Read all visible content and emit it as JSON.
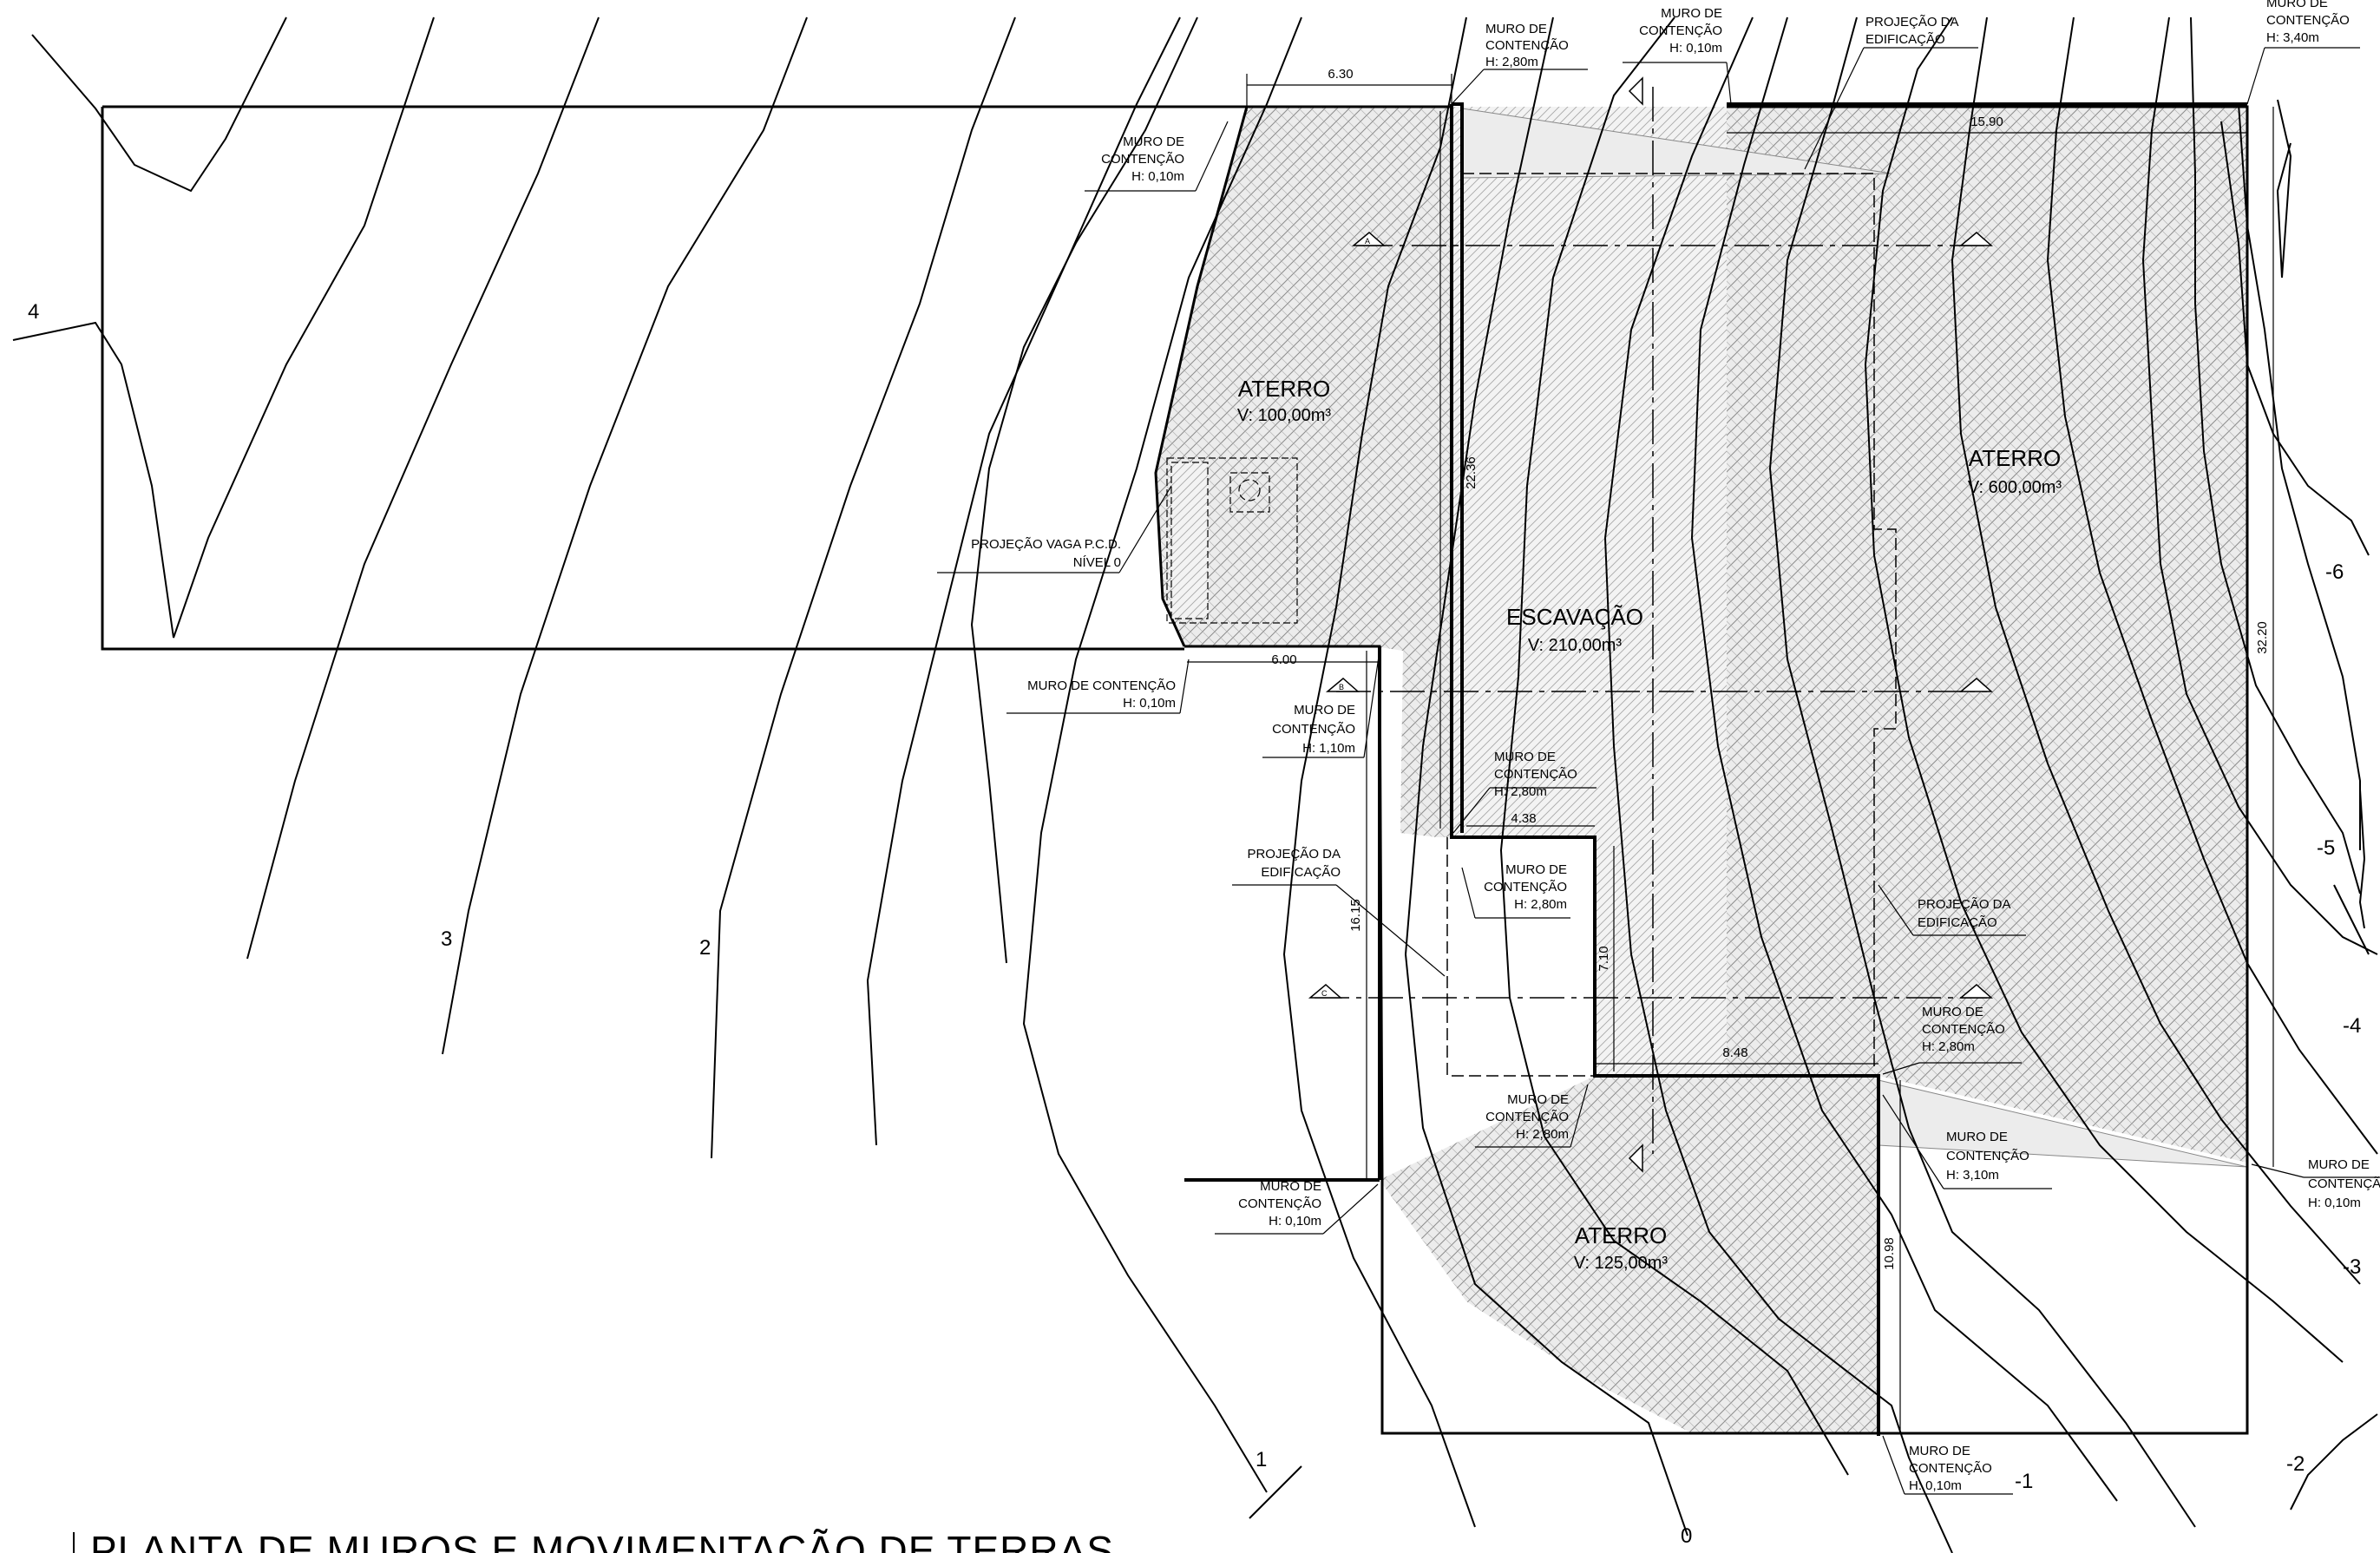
{
  "title": "PLANTA DE MUROS E MOVIMENTAÇÃO DE TERRAS",
  "zones": {
    "aterro_left": {
      "name": "ATERRO",
      "volume": "V: 100,00m³"
    },
    "aterro_right": {
      "name": "ATERRO",
      "volume": "V: 600,00m³"
    },
    "escavacao": {
      "name": "ESCAVAÇÃO",
      "volume": "V: 210,00m³"
    },
    "aterro_bottom": {
      "name": "ATERRO",
      "volume": "V: 125,00m³"
    }
  },
  "walls": {
    "w1": [
      "MURO DE",
      "CONTENÇÃO",
      "H: 2,80m"
    ],
    "w2": [
      "MURO DE",
      "CONTENÇÃO",
      "H: 0,10m"
    ],
    "w3": [
      "MURO DE",
      "CONTENÇÃO",
      "H: 3,40m"
    ],
    "w4": [
      "MURO DE",
      "CONTENÇÃO",
      "H: 0,10m"
    ],
    "w5": [
      "MURO DE CONTENÇÃO",
      "H: 0,10m"
    ],
    "w6": [
      "MURO DE",
      "CONTENÇÃO",
      "H: 1,10m"
    ],
    "w7": [
      "MURO DE",
      "CONTENÇÃO",
      "H: 2,80m"
    ],
    "w8": [
      "MURO DE",
      "CONTENÇÃO",
      "H: 2,80m"
    ],
    "w9": [
      "MURO DE",
      "CONTENÇÃO",
      "H: 2,80m"
    ],
    "w10": [
      "MURO DE",
      "CONTENÇÃO",
      "H: 2,80m"
    ],
    "w11": [
      "MURO DE",
      "CONTENÇÃO",
      "H: 3,10m"
    ],
    "w12": [
      "MURO DE",
      "CONTENÇÃO",
      "H: 0,10m"
    ],
    "w13": [
      "MURO DE",
      "CONTENÇÃO",
      "H: 0,10m"
    ],
    "w14": [
      "MURO DE",
      "CONTENÇÃO",
      "H: 0,10m"
    ]
  },
  "projections": {
    "p1": [
      "PROJEÇÃO DA",
      "EDIFICAÇÃO"
    ],
    "p2": [
      "PROJEÇÃO DA",
      "EDIFICAÇÃO"
    ],
    "p3": [
      "PROJEÇÃO DA",
      "EDIFICAÇÃO"
    ],
    "pcd": [
      "PROJEÇÃO VAGA P.C.D.",
      "NÍVEL 0"
    ]
  },
  "dimensions": {
    "d630": "6.30",
    "d1590": "15.90",
    "d600": "6.00",
    "d438": "4.38",
    "d848": "8.48",
    "d2236": "22.36",
    "d3220": "32.20",
    "d1615": "16.15",
    "d710": "7.10",
    "d1098": "10.98"
  },
  "contour_levels": [
    "4",
    "3",
    "2",
    "1",
    "0",
    "-1",
    "-2",
    "-3",
    "-4",
    "-5",
    "-6"
  ],
  "section_marks": [
    "A",
    "B",
    "C"
  ],
  "colors": {
    "line": "#000000",
    "hatch": "#9a9a9a",
    "fill": "#e6e6e6"
  }
}
